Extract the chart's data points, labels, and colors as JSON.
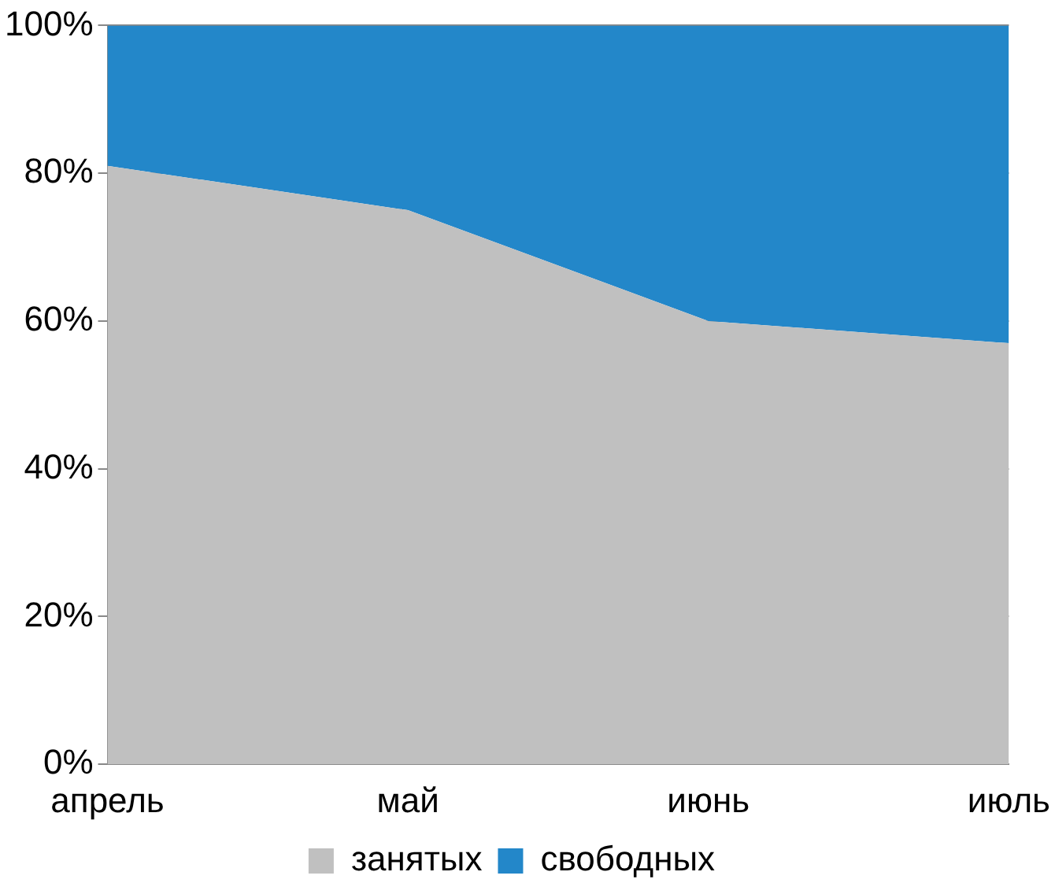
{
  "chart_data": {
    "type": "area",
    "stacked": true,
    "categories": [
      "апрель",
      "май",
      "июнь",
      "июль"
    ],
    "series": [
      {
        "name": "занятых",
        "color": "#c0c0c0",
        "values": [
          81,
          75,
          60,
          57
        ]
      },
      {
        "name": "свободных",
        "color": "#2387c9",
        "values": [
          19,
          25,
          40,
          43
        ]
      }
    ],
    "ylim": [
      0,
      100
    ],
    "yticks": [
      {
        "value": 0,
        "label": "0%"
      },
      {
        "value": 20,
        "label": "20%"
      },
      {
        "value": 40,
        "label": "40%"
      },
      {
        "value": 60,
        "label": "60%"
      },
      {
        "value": 80,
        "label": "80%"
      },
      {
        "value": 100,
        "label": "100%"
      }
    ],
    "grid": "y",
    "legend": "bottom"
  }
}
